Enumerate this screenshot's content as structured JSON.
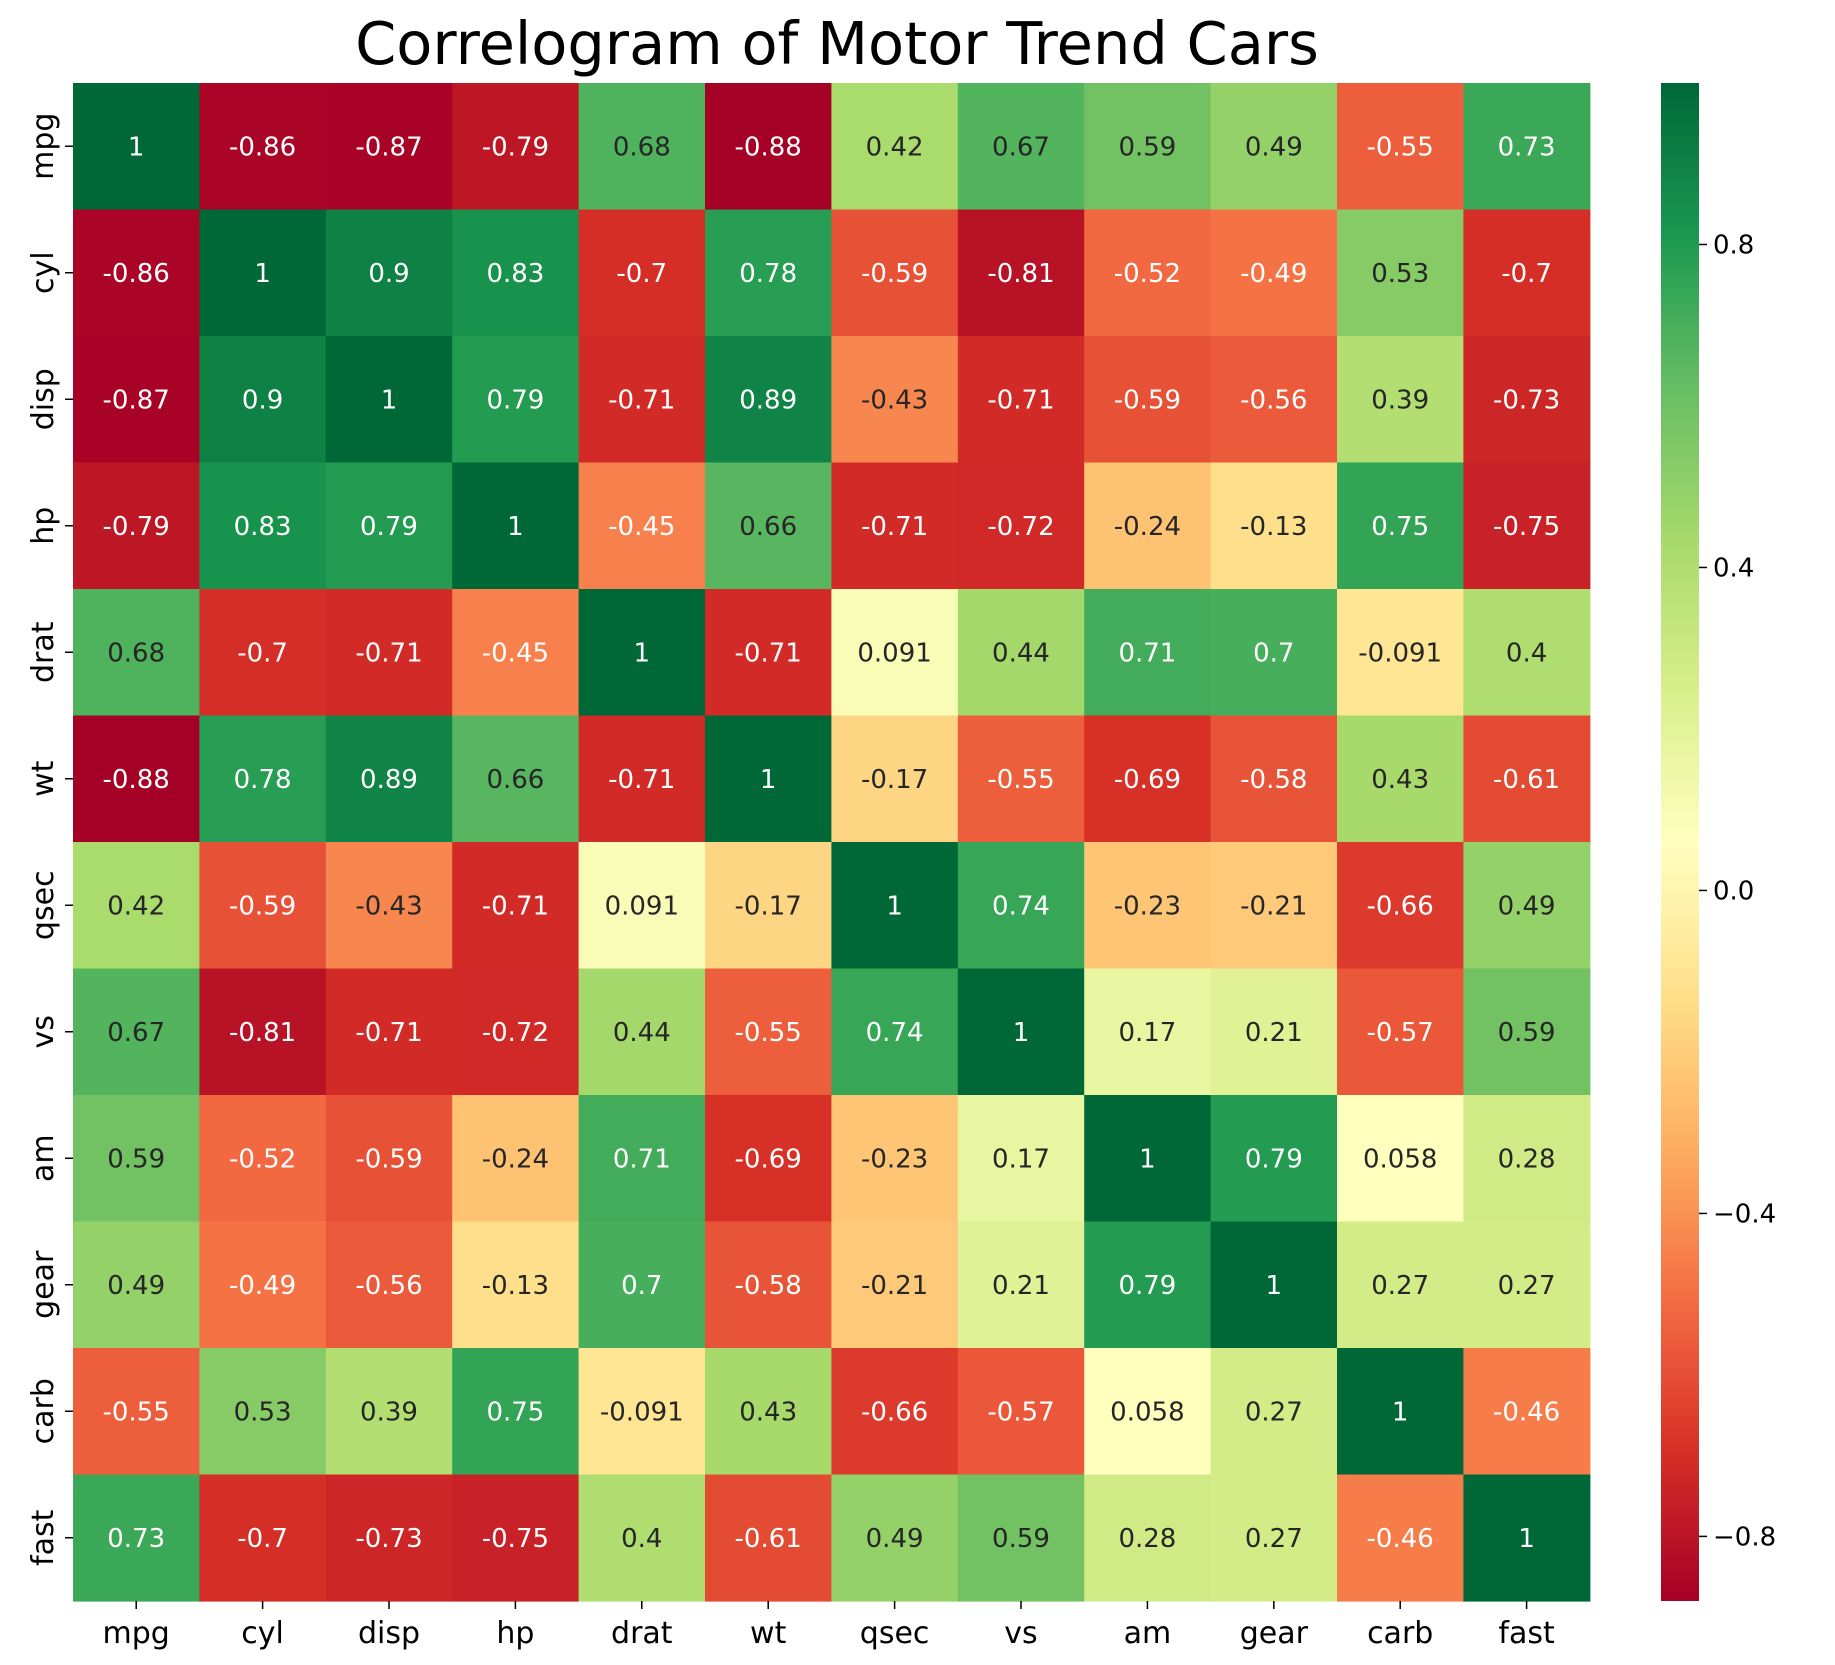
{
  "chart_data": {
    "type": "heatmap",
    "title": "Correlogram of Motor Trend Cars",
    "row_labels": [
      "mpg",
      "cyl",
      "disp",
      "hp",
      "drat",
      "wt",
      "qsec",
      "vs",
      "am",
      "gear",
      "carb",
      "fast"
    ],
    "col_labels": [
      "mpg",
      "cyl",
      "disp",
      "hp",
      "drat",
      "wt",
      "qsec",
      "vs",
      "am",
      "gear",
      "carb",
      "fast"
    ],
    "values": [
      [
        1,
        -0.86,
        -0.87,
        -0.79,
        0.68,
        -0.88,
        0.42,
        0.67,
        0.59,
        0.49,
        -0.55,
        0.73
      ],
      [
        -0.86,
        1,
        0.9,
        0.83,
        -0.7,
        0.78,
        -0.59,
        -0.81,
        -0.52,
        -0.49,
        0.53,
        -0.7
      ],
      [
        -0.87,
        0.9,
        1,
        0.79,
        -0.71,
        0.89,
        -0.43,
        -0.71,
        -0.59,
        -0.56,
        0.39,
        -0.73
      ],
      [
        -0.79,
        0.83,
        0.79,
        1,
        -0.45,
        0.66,
        -0.71,
        -0.72,
        -0.24,
        -0.13,
        0.75,
        -0.75
      ],
      [
        0.68,
        -0.7,
        -0.71,
        -0.45,
        1,
        -0.71,
        0.091,
        0.44,
        0.71,
        0.7,
        -0.091,
        0.4
      ],
      [
        -0.88,
        0.78,
        0.89,
        0.66,
        -0.71,
        1,
        -0.17,
        -0.55,
        -0.69,
        -0.58,
        0.43,
        -0.61
      ],
      [
        0.42,
        -0.59,
        -0.43,
        -0.71,
        0.091,
        -0.17,
        1,
        0.74,
        -0.23,
        -0.21,
        -0.66,
        0.49
      ],
      [
        0.67,
        -0.81,
        -0.71,
        -0.72,
        0.44,
        -0.55,
        0.74,
        1,
        0.17,
        0.21,
        -0.57,
        0.59
      ],
      [
        0.59,
        -0.52,
        -0.59,
        -0.24,
        0.71,
        -0.69,
        -0.23,
        0.17,
        1,
        0.79,
        0.058,
        0.28
      ],
      [
        0.49,
        -0.49,
        -0.56,
        -0.13,
        0.7,
        -0.58,
        -0.21,
        0.21,
        0.79,
        1,
        0.27,
        0.27
      ],
      [
        -0.55,
        0.53,
        0.39,
        0.75,
        -0.091,
        0.43,
        -0.66,
        -0.57,
        0.058,
        0.27,
        1,
        -0.46
      ],
      [
        0.73,
        -0.7,
        -0.73,
        -0.75,
        0.4,
        -0.61,
        0.49,
        0.59,
        0.28,
        0.27,
        -0.46,
        1
      ]
    ],
    "color_range": [
      -0.88,
      1
    ],
    "colormap": "RdYlGn",
    "colorbar_ticks": [
      "0.8",
      "0.4",
      "0.0",
      "−0.4",
      "−0.8"
    ],
    "colorbar_tick_values": [
      0.8,
      0.4,
      0.0,
      -0.4,
      -0.8
    ],
    "annotations": true,
    "legend": "colorbar-right"
  }
}
